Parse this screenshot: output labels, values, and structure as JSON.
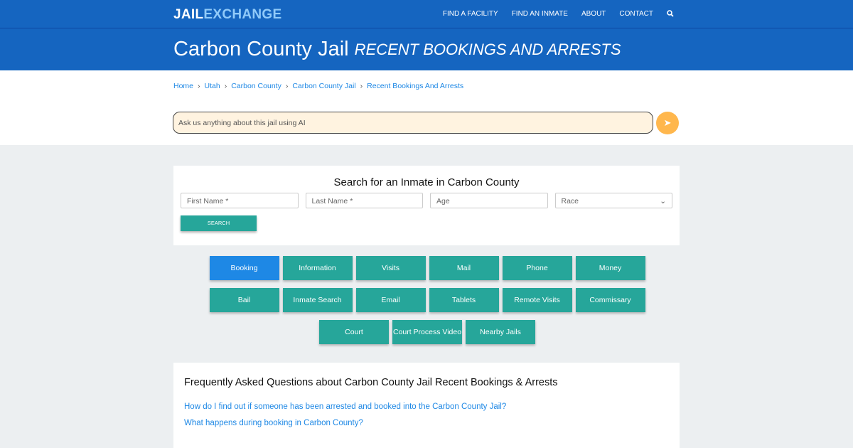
{
  "nav": {
    "logo_part1": "JAIL",
    "logo_part2": "EXCHANGE",
    "items": [
      "FIND A FACILITY",
      "FIND AN INMATE",
      "ABOUT",
      "CONTACT"
    ],
    "search_icon": "search-icon"
  },
  "hero": {
    "title": "Carbon County Jail",
    "subtitle": "RECENT BOOKINGS AND ARRESTS"
  },
  "breadcrumb": [
    "Home",
    "Utah",
    "Carbon County",
    "Carbon County Jail",
    "Recent Bookings And Arrests"
  ],
  "ai": {
    "placeholder": "Ask us anything about this jail using AI",
    "send_icon": "paper-plane-icon"
  },
  "search": {
    "title": "Search for an Inmate in Carbon County",
    "first_name": "First Name *",
    "last_name": "Last Name *",
    "age": "Age",
    "race": "Race",
    "button": "SEARCH"
  },
  "buttons": [
    "Booking",
    "Information",
    "Visits",
    "Mail",
    "Phone",
    "Money",
    "Bail",
    "Inmate Search",
    "Email",
    "Tablets",
    "Remote Visits",
    "Commissary",
    "Court",
    "Court Process Video",
    "Nearby Jails"
  ],
  "faq": {
    "title": "Frequently Asked Questions about Carbon County Jail Recent Bookings & Arrests",
    "questions": [
      "How do I find out if someone has been arrested and booked into the Carbon County Jail?",
      "What happens during booking in Carbon County?"
    ]
  },
  "colors": {
    "header": "#1565c0",
    "teal": "#26a69a",
    "active": "#1e88e5",
    "ai_bg": "#fff3e0",
    "send": "#ffb74d"
  }
}
